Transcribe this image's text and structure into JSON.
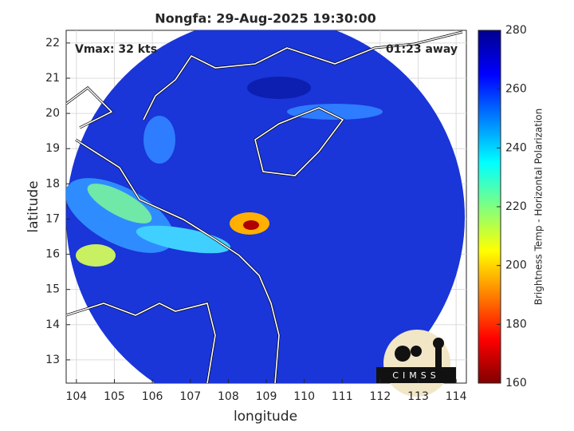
{
  "chart_data": {
    "type": "map",
    "title": "Nongfa: 29-Aug-2025 19:30:00",
    "xlabel": "longitude",
    "ylabel": "latitude",
    "xlim": [
      103.73,
      114.27
    ],
    "ylim": [
      12.34,
      22.36
    ],
    "xticks": [
      104,
      105,
      106,
      107,
      108,
      109,
      110,
      111,
      112,
      113,
      114
    ],
    "yticks": [
      13,
      14,
      15,
      16,
      17,
      18,
      19,
      20,
      21,
      22
    ],
    "grid": true,
    "annotations": [
      "Vmax: 32 kts",
      "01:23 away"
    ],
    "colorbar": {
      "label": "Brightness Temp - Horizontal Polarization",
      "lim": [
        160,
        280
      ],
      "ticks": [
        160,
        180,
        200,
        220,
        240,
        260,
        280
      ],
      "colors": [
        "#800000",
        "#ff0000",
        "#ff8000",
        "#ffff00",
        "#80ff80",
        "#00ffff",
        "#0080ff",
        "#0000ff",
        "#00008f"
      ]
    },
    "logo": "CIMSS"
  }
}
